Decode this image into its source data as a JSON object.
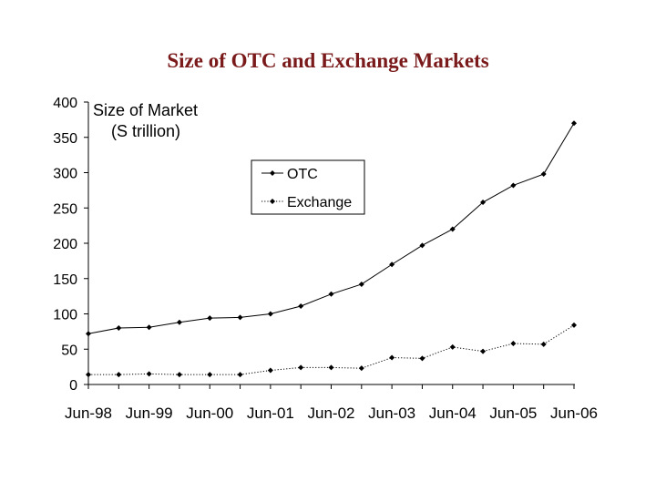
{
  "slide": {
    "title": "Size of OTC and Exchange Markets"
  },
  "chart_data": {
    "type": "line",
    "title": "Size of OTC and Exchange Markets",
    "axis_title_lines": [
      "Size of Market",
      "(S trillion)"
    ],
    "xlabel": "",
    "ylabel": "Size of Market (S trillion)",
    "ylim": [
      0,
      400
    ],
    "yticks": [
      0,
      50,
      100,
      150,
      200,
      250,
      300,
      350,
      400
    ],
    "x_tick_labels": [
      "Jun-98",
      "Jun-99",
      "Jun-00",
      "Jun-01",
      "Jun-02",
      "Jun-03",
      "Jun-04",
      "Jun-05",
      "Jun-06"
    ],
    "x_points": [
      "Jun-98",
      "Dec-98",
      "Jun-99",
      "Dec-99",
      "Jun-00",
      "Dec-00",
      "Jun-01",
      "Dec-01",
      "Jun-02",
      "Dec-02",
      "Jun-03",
      "Dec-03",
      "Jun-04",
      "Dec-04",
      "Jun-05",
      "Dec-05",
      "Jun-06"
    ],
    "grid": false,
    "legend_position": "upper-middle",
    "series": [
      {
        "name": "OTC",
        "style": "solid",
        "color": "#000000",
        "values": [
          72,
          80,
          81,
          88,
          94,
          95,
          100,
          111,
          128,
          142,
          170,
          197,
          220,
          258,
          282,
          298,
          370
        ]
      },
      {
        "name": "Exchange",
        "style": "dotted",
        "color": "#000000",
        "values": [
          14,
          14,
          15,
          14,
          14,
          14,
          20,
          24,
          24,
          23,
          38,
          37,
          53,
          47,
          58,
          57,
          84
        ]
      }
    ]
  }
}
